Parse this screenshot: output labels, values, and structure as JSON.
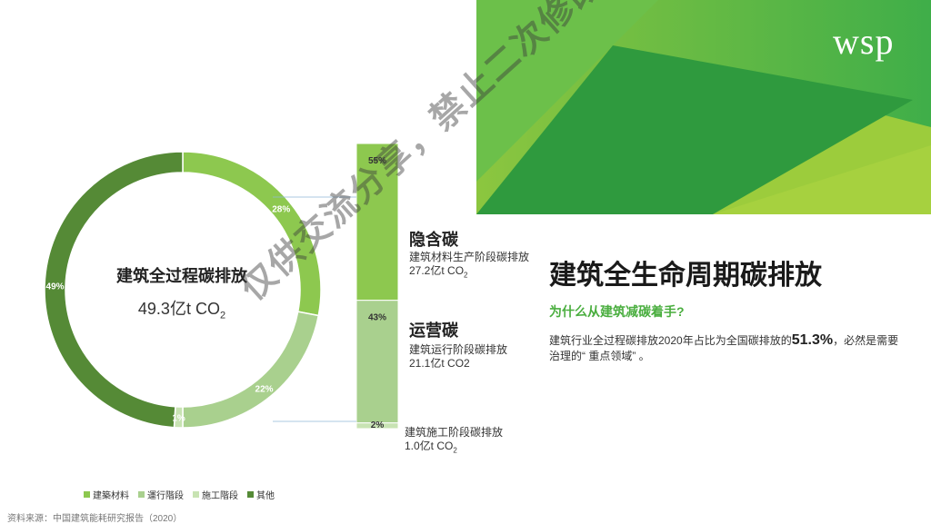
{
  "logo": "wsp",
  "colors": {
    "embodied": "#8dc84f",
    "operational": "#a9d08e",
    "construction": "#c8e3b3",
    "other": "#558a36",
    "banner_dark": "#2f9a3e",
    "banner_mid": "#4db84a",
    "banner_light": "#9ccc3c"
  },
  "chart_data": [
    {
      "type": "pie",
      "variant": "donut",
      "title": "建筑全过程碳排放",
      "center_value": "49.3亿t CO",
      "center_value_sub": "2",
      "categories": [
        "建筑材料",
        "運行階段",
        "施工階段",
        "其他"
      ],
      "values": [
        28,
        22,
        1,
        49
      ],
      "data_labels": [
        "28%",
        "22%",
        "1%",
        "49%"
      ],
      "legend_position": "bottom"
    },
    {
      "type": "bar",
      "variant": "stacked-100",
      "categories": [
        "隐含碳",
        "运营碳",
        "建筑施工阶段碳排放"
      ],
      "values": [
        55,
        43,
        2
      ],
      "data_labels": [
        "55%",
        "43%",
        "2%"
      ]
    }
  ],
  "sections": [
    {
      "title": "隐含碳",
      "desc": "建筑材料生产阶段碳排放",
      "value": "27.2亿t CO",
      "value_sub": "2"
    },
    {
      "title": "运营碳",
      "desc": "建筑运行阶段碳排放",
      "value": "21.1亿t CO2",
      "value_sub": ""
    },
    {
      "title": "",
      "desc": "建筑施工阶段碳排放",
      "value": "1.0亿t CO",
      "value_sub": "2"
    }
  ],
  "main_title": "建筑全生命周期碳排放",
  "subtitle": "为什么从建筑减碳着手?",
  "body": {
    "text_before": "建筑行业全过程碳排放2020年占比为全国碳排放的",
    "highlight": "51.3%",
    "text_after": "，必然是需要治理的“ 重点领域” 。"
  },
  "legend": [
    {
      "label": "建築材料",
      "color": "#8dc84f"
    },
    {
      "label": "運行階段",
      "color": "#a9d08e"
    },
    {
      "label": "施工階段",
      "color": "#c8e3b3"
    },
    {
      "label": "其他",
      "color": "#558a36"
    }
  ],
  "source": "资料来源：中国建筑能耗研究报告（2020）",
  "watermark": "仅供交流分享，禁止二次修改或商业使用"
}
